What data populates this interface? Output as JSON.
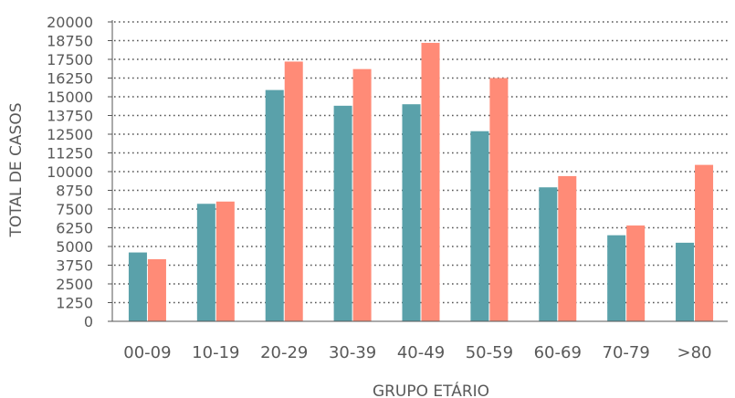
{
  "chart_data": {
    "type": "bar",
    "title": "",
    "xlabel": "GRUPO ETÁRIO",
    "ylabel": "TOTAL DE CASOS",
    "categories": [
      "00-09",
      "10-19",
      "20-29",
      "30-39",
      "40-49",
      "50-59",
      "60-69",
      "70-79",
      ">80"
    ],
    "series": [
      {
        "values": [
          4600,
          7850,
          15450,
          14400,
          14500,
          12700,
          8950,
          5750,
          5250
        ],
        "color": "#5aa1aa"
      },
      {
        "values": [
          4150,
          8000,
          17350,
          16850,
          18600,
          16250,
          9700,
          6400,
          10450
        ],
        "color": "#ff8b77"
      }
    ],
    "yticks": [
      0,
      1250,
      2500,
      3750,
      5000,
      6250,
      7500,
      8750,
      10000,
      11250,
      12500,
      13750,
      15000,
      16250,
      17500,
      18750,
      20000
    ],
    "ylim": [
      0,
      20000
    ],
    "grid": true,
    "grid_style": "dotted",
    "legend": "none"
  }
}
